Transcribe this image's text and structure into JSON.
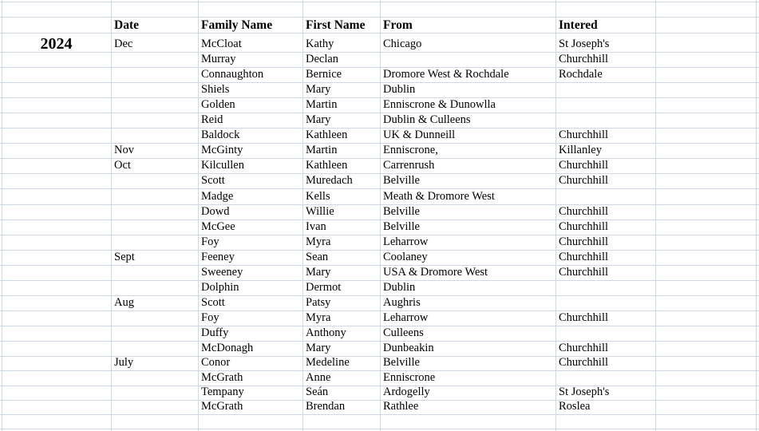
{
  "year": "2024",
  "headers": {
    "date": "Date",
    "family": "Family Name",
    "first": "First Name",
    "from": "From",
    "intered": "Intered"
  },
  "rows": [
    {
      "date": "Dec",
      "family": "McCloat",
      "first": "Kathy",
      "from": "Chicago",
      "intered": "St Joseph's"
    },
    {
      "date": "",
      "family": "Murray",
      "first": "Declan",
      "from": "",
      "intered": "Churchhill"
    },
    {
      "date": "",
      "family": "Connaughton",
      "first": "Bernice",
      "from": "Dromore West & Rochdale",
      "intered": "Rochdale"
    },
    {
      "date": "",
      "family": "Shiels",
      "first": "Mary",
      "from": "Dublin",
      "intered": ""
    },
    {
      "date": "",
      "family": "Golden",
      "first": "Martin",
      "from": "Enniscrone & Dunowlla",
      "intered": ""
    },
    {
      "date": "",
      "family": "Reid",
      "first": "Mary",
      "from": "Dublin & Culleens",
      "intered": ""
    },
    {
      "date": "",
      "family": "Baldock",
      "first": "Kathleen",
      "from": "UK & Dunneill",
      "intered": "Churchhill"
    },
    {
      "date": "Nov",
      "family": "McGinty",
      "first": "Martin",
      "from": "Enniscrone,",
      "intered": "Killanley"
    },
    {
      "date": "Oct",
      "family": "Kilcullen",
      "first": "Kathleen",
      "from": "Carrenrush",
      "intered": "Churchhill"
    },
    {
      "date": "",
      "family": "Scott",
      "first": "Muredach",
      "from": "Belville",
      "intered": "Churchhill"
    },
    {
      "date": "",
      "family": "Madge",
      "first": "Kells",
      "from": "Meath & Dromore West",
      "intered": ""
    },
    {
      "date": "",
      "family": "Dowd",
      "first": "Willie",
      "from": "Belville",
      "intered": "Churchhill"
    },
    {
      "date": "",
      "family": "McGee",
      "first": "Ivan",
      "from": "Belville",
      "intered": "Churchhill"
    },
    {
      "date": "",
      "family": "Foy",
      "first": "Myra",
      "from": "Leharrow",
      "intered": "Churchhill"
    },
    {
      "date": "Sept",
      "family": "Feeney",
      "first": "Sean",
      "from": "Coolaney",
      "intered": "Churchhill"
    },
    {
      "date": "",
      "family": "Sweeney",
      "first": "Mary",
      "from": "USA & Dromore West",
      "intered": "Churchhill"
    },
    {
      "date": "",
      "family": "Dolphin",
      "first": "Dermot",
      "from": "Dublin",
      "intered": ""
    },
    {
      "date": "Aug",
      "family": "Scott",
      "first": "Patsy",
      "from": "Aughris",
      "intered": ""
    },
    {
      "date": "",
      "family": "Foy",
      "first": "Myra",
      "from": "Leharrow",
      "intered": "Churchhill"
    },
    {
      "date": "",
      "family": "Duffy",
      "first": "Anthony",
      "from": "Culleens",
      "intered": ""
    },
    {
      "date": "",
      "family": "McDonagh",
      "first": "Mary",
      "from": "Dunbeakin",
      "intered": "Churchhill"
    },
    {
      "date": "July",
      "family": "Conor",
      "first": "Medeline",
      "from": "Belville",
      "intered": "Churchhill"
    },
    {
      "date": "",
      "family": "McGrath",
      "first": "Anne",
      "from": "Enniscrone",
      "intered": ""
    },
    {
      "date": "",
      "family": "Tempany",
      "first": "Seán",
      "from": "Ardogelly",
      "intered": "St Joseph's"
    },
    {
      "date": "",
      "family": "McGrath",
      "first": "Brendan",
      "from": "Rathlee",
      "intered": "Roslea"
    }
  ]
}
